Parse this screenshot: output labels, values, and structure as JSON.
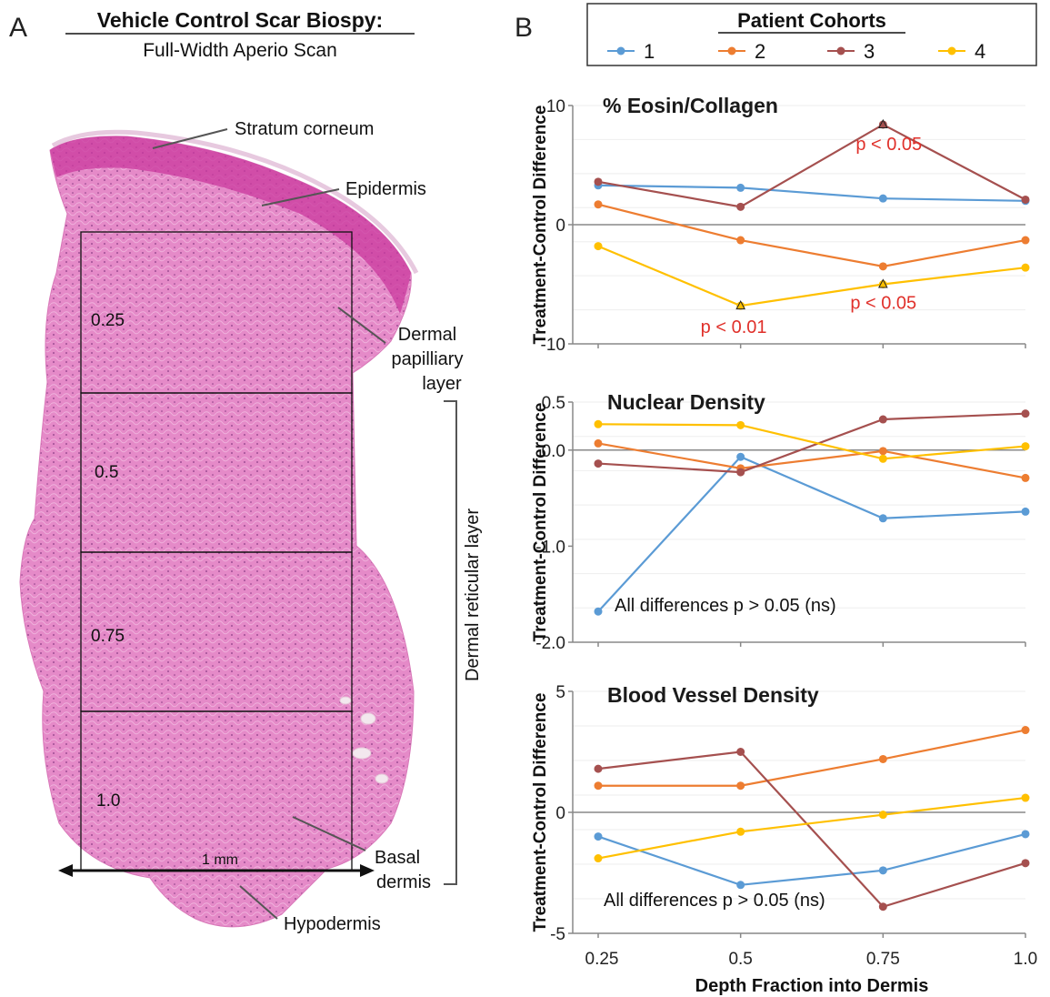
{
  "panel_a": {
    "letter": "A",
    "title": "Vehicle Control Scar Biospy:",
    "subtitle": "Full-Width Aperio Scan",
    "depth_labels": [
      "0.25",
      "0.5",
      "0.75",
      "1.0"
    ],
    "scale_label": "1 mm",
    "annotations": {
      "stratum_corneum": "Stratum corneum",
      "epidermis": "Epidermis",
      "dermal_pap_1": "Dermal",
      "dermal_pap_2": "papilliary",
      "dermal_pap_3": "layer",
      "reticular": "Dermal reticular layer",
      "basal_1": "Basal",
      "basal_2": "dermis",
      "hypodermis": "Hypodermis"
    },
    "tissue_color": "#e58ac8"
  },
  "panel_b": {
    "letter": "B",
    "legend_title": "Patient Cohorts",
    "xlabel": "Depth Fraction into Dermis",
    "ylabel": "Treatment-Control Difference"
  },
  "chart_data": [
    {
      "type": "line",
      "title": "% Eosin/Collagen",
      "x": [
        0.25,
        0.5,
        0.75,
        1.0
      ],
      "ylim": [
        -10,
        10
      ],
      "yticks": [
        "10",
        "0",
        "-10"
      ],
      "ytick_values": [
        10,
        0,
        -10
      ],
      "series": [
        {
          "name": "1",
          "color": "#5b9bd5",
          "values": [
            3.3,
            3.1,
            2.2,
            2.0
          ]
        },
        {
          "name": "2",
          "color": "#ed7d31",
          "values": [
            1.7,
            -1.3,
            -3.5,
            -1.3
          ]
        },
        {
          "name": "3",
          "color": "#a5504f",
          "values": [
            3.6,
            1.5,
            8.4,
            2.1
          ]
        },
        {
          "name": "4",
          "color": "#ffc000",
          "values": [
            -1.8,
            -6.8,
            -5.0,
            -3.6
          ]
        }
      ],
      "annotations": [
        {
          "text": "p < 0.05",
          "x": 0.75,
          "series": "3"
        },
        {
          "text": "p < 0.01",
          "x": 0.5,
          "series": "4"
        },
        {
          "text": "p < 0.05",
          "x": 0.75,
          "series": "4"
        }
      ]
    },
    {
      "type": "line",
      "title": "Nuclear Density",
      "x": [
        0.25,
        0.5,
        0.75,
        1.0
      ],
      "ylim": [
        -2.0,
        0.5
      ],
      "yticks": [
        "0.5",
        "0.0",
        "-1.0",
        "-2.0"
      ],
      "ytick_values": [
        0.5,
        0.0,
        -1.0,
        -2.0
      ],
      "series": [
        {
          "name": "1",
          "color": "#5b9bd5",
          "values": [
            -1.68,
            -0.07,
            -0.71,
            -0.64
          ]
        },
        {
          "name": "2",
          "color": "#ed7d31",
          "values": [
            0.07,
            -0.19,
            -0.01,
            -0.29
          ]
        },
        {
          "name": "3",
          "color": "#a5504f",
          "values": [
            -0.14,
            -0.23,
            0.32,
            0.38
          ]
        },
        {
          "name": "4",
          "color": "#ffc000",
          "values": [
            0.27,
            0.26,
            -0.09,
            0.04
          ]
        }
      ],
      "annotations": [
        {
          "text": "All differences p > 0.05 (ns)"
        }
      ]
    },
    {
      "type": "line",
      "title": "Blood Vessel Density",
      "x": [
        0.25,
        0.5,
        0.75,
        1.0
      ],
      "ylim": [
        -5,
        5
      ],
      "yticks": [
        "5",
        "0",
        "-5"
      ],
      "ytick_values": [
        5,
        0,
        -5
      ],
      "xticks": [
        "0.25",
        "0.5",
        "0.75",
        "1.0"
      ],
      "series": [
        {
          "name": "1",
          "color": "#5b9bd5",
          "values": [
            -1.0,
            -3.0,
            -2.4,
            -0.9
          ]
        },
        {
          "name": "2",
          "color": "#ed7d31",
          "values": [
            1.1,
            1.1,
            2.2,
            3.4
          ]
        },
        {
          "name": "3",
          "color": "#a5504f",
          "values": [
            1.8,
            2.5,
            -3.9,
            -2.1
          ]
        },
        {
          "name": "4",
          "color": "#ffc000",
          "values": [
            -1.9,
            -0.8,
            -0.1,
            0.6
          ]
        }
      ],
      "annotations": [
        {
          "text": "All differences p > 0.05 (ns)"
        }
      ]
    }
  ]
}
